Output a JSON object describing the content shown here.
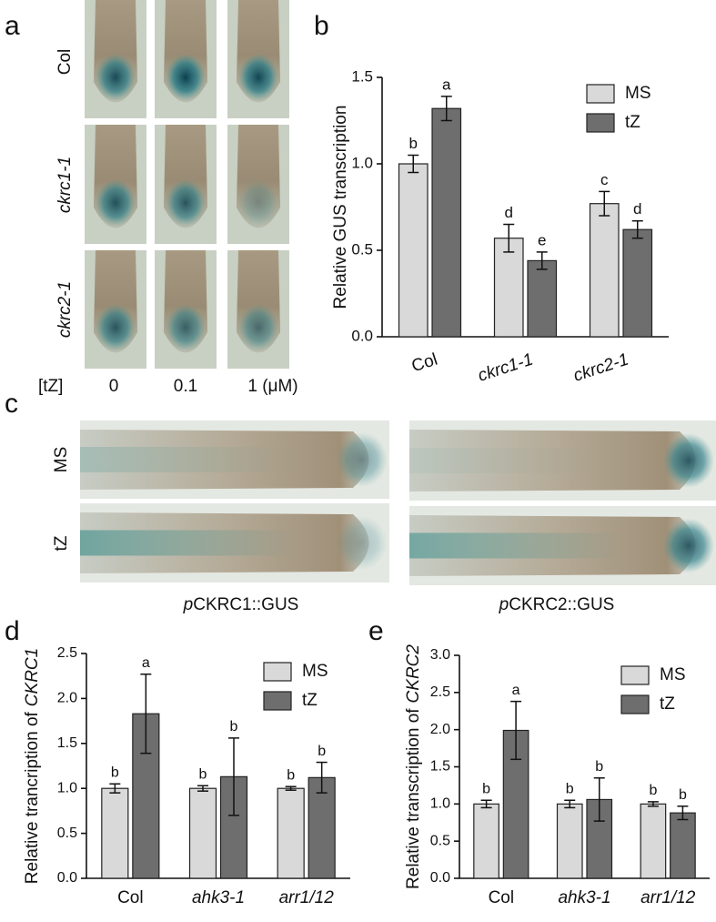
{
  "figure": {
    "panels": [
      "a",
      "b",
      "c",
      "d",
      "e"
    ],
    "a_rows": [
      "Col",
      "ckrc1-1",
      "ckrc2-1"
    ],
    "a_treatment": "[tZ]",
    "a_doses": [
      "0",
      "0.1",
      "1 (μM)"
    ],
    "c_rows": [
      "MS",
      "tZ"
    ],
    "c_captions": [
      [
        "p",
        "CKRC1::GUS"
      ],
      [
        "p",
        "CKRC2::GUS"
      ]
    ]
  },
  "chart_data": [
    {
      "type": "bar",
      "y_label": [
        "Relative GUS transcription"
      ],
      "categories": [
        "Col",
        "ckrc1-1",
        "ckrc2-1"
      ],
      "series": [
        {
          "name": "MS",
          "color": "#d9d9d9",
          "values": [
            1.0,
            0.57,
            0.77
          ],
          "errors": [
            0.05,
            0.08,
            0.07
          ],
          "letters": [
            "b",
            "d",
            "c"
          ]
        },
        {
          "name": "tZ",
          "color": "#6e6e6e",
          "values": [
            1.32,
            0.44,
            0.62
          ],
          "errors": [
            0.07,
            0.05,
            0.05
          ],
          "letters": [
            "a",
            "e",
            "d"
          ]
        }
      ],
      "ylim": [
        0,
        1.5
      ],
      "yticks": [
        {
          "value": 0,
          "label": "0.0"
        },
        {
          "value": 0.5,
          "label": "0.5"
        },
        {
          "value": 1,
          "label": "1.0"
        },
        {
          "value": 1.5,
          "label": "1.5"
        }
      ]
    },
    {
      "type": "bar",
      "y_label": [
        "Relative trancription of",
        "CKRC1"
      ],
      "categories": [
        "Col",
        "ahk3-1",
        "arr1/12"
      ],
      "series": [
        {
          "name": "MS",
          "color": "#d9d9d9",
          "values": [
            1.0,
            1.0,
            1.0
          ],
          "errors": [
            0.05,
            0.03,
            0.02
          ],
          "letters": [
            "b",
            "b",
            "b"
          ]
        },
        {
          "name": "tZ",
          "color": "#6e6e6e",
          "values": [
            1.83,
            1.13,
            1.12
          ],
          "errors": [
            0.44,
            0.43,
            0.17
          ],
          "letters": [
            "a",
            "b",
            "b"
          ]
        }
      ],
      "ylim": [
        0,
        2.5
      ],
      "yticks": [
        {
          "value": 0,
          "label": "0.0"
        },
        {
          "value": 0.5,
          "label": "0.5"
        },
        {
          "value": 1,
          "label": "1.0"
        },
        {
          "value": 1.5,
          "label": "1.5"
        },
        {
          "value": 2,
          "label": "2.0"
        },
        {
          "value": 2.5,
          "label": "2.5"
        }
      ]
    },
    {
      "type": "bar",
      "y_label": [
        "Relative transcription of",
        "CKRC2"
      ],
      "categories": [
        "Col",
        "ahk3-1",
        "arr1/12"
      ],
      "series": [
        {
          "name": "MS",
          "color": "#d9d9d9",
          "values": [
            1.0,
            1.0,
            1.0
          ],
          "errors": [
            0.05,
            0.05,
            0.03
          ],
          "letters": [
            "b",
            "b",
            "b"
          ]
        },
        {
          "name": "tZ",
          "color": "#6e6e6e",
          "values": [
            1.99,
            1.06,
            0.88
          ],
          "errors": [
            0.39,
            0.29,
            0.09
          ],
          "letters": [
            "a",
            "b",
            "b"
          ]
        }
      ],
      "ylim": [
        0,
        3
      ],
      "yticks": [
        {
          "value": 0,
          "label": "0.0"
        },
        {
          "value": 0.5,
          "label": "0.5"
        },
        {
          "value": 1,
          "label": "1.0"
        },
        {
          "value": 1.5,
          "label": "1.5"
        },
        {
          "value": 2,
          "label": "2.0"
        },
        {
          "value": 2.5,
          "label": "2.5"
        },
        {
          "value": 3,
          "label": "3.0"
        }
      ]
    }
  ]
}
